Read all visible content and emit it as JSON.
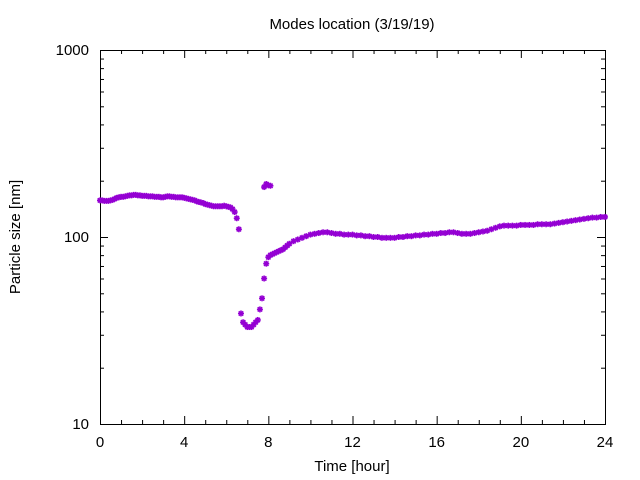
{
  "chart_data": {
    "type": "scatter",
    "title": "Modes location (3/19/19)",
    "xlabel": "Time [hour]",
    "ylabel": "Particle size [nm]",
    "xlim": [
      0,
      24
    ],
    "ylim": [
      10,
      1000
    ],
    "yscale": "log",
    "grid": false,
    "legend": "none",
    "marker_color": "#9400d3",
    "x_ticks": [
      0,
      4,
      8,
      12,
      16,
      20,
      24
    ],
    "x_tick_labels": [
      "0",
      "4",
      "8",
      "12",
      "16",
      "20",
      "24"
    ],
    "y_ticks": [
      10,
      100,
      1000
    ],
    "y_tick_labels": [
      "10",
      "100",
      "1000"
    ],
    "series": [
      {
        "x": [
          0.0,
          0.1,
          0.2,
          0.3,
          0.4,
          0.5,
          0.6,
          0.7,
          0.8,
          0.9,
          1.0,
          1.1,
          1.2,
          1.3,
          1.4,
          1.5,
          1.6,
          1.7,
          1.8,
          1.9,
          2.0,
          2.1,
          2.2,
          2.3,
          2.4,
          2.5,
          2.6,
          2.7,
          2.8,
          2.9,
          3.0,
          3.1,
          3.2,
          3.3,
          3.4,
          3.5,
          3.6,
          3.7,
          3.8,
          3.9,
          4.0,
          4.1,
          4.2,
          4.3,
          4.4,
          4.5,
          4.6,
          4.7,
          4.8,
          4.9,
          5.0,
          5.1,
          5.2,
          5.3,
          5.4,
          5.5,
          5.6,
          5.7,
          5.8,
          5.9,
          6.0,
          6.1,
          6.2,
          6.3,
          6.4,
          6.5,
          6.6,
          6.7,
          6.8,
          6.9,
          7.0,
          7.1,
          7.2,
          7.3,
          7.4,
          7.5,
          7.6,
          7.7,
          7.8,
          7.9,
          8.0,
          8.1,
          8.2,
          8.3,
          8.4,
          8.5,
          8.6,
          8.7,
          8.8,
          8.9,
          9.0,
          9.2,
          9.4,
          9.6,
          9.8,
          10.0,
          10.2,
          10.4,
          10.6,
          10.8,
          11.0,
          11.2,
          11.4,
          11.6,
          11.8,
          12.0,
          12.2,
          12.4,
          12.6,
          12.8,
          13.0,
          13.2,
          13.4,
          13.6,
          13.8,
          14.0,
          14.2,
          14.4,
          14.6,
          14.8,
          15.0,
          15.2,
          15.4,
          15.6,
          15.8,
          16.0,
          16.2,
          16.4,
          16.6,
          16.8,
          17.0,
          17.2,
          17.4,
          17.6,
          17.8,
          18.0,
          18.2,
          18.4,
          18.6,
          18.8,
          19.0,
          19.2,
          19.4,
          19.6,
          19.8,
          20.0,
          20.2,
          20.4,
          20.6,
          20.8,
          21.0,
          21.2,
          21.4,
          21.6,
          21.8,
          22.0,
          22.2,
          22.4,
          22.6,
          22.8,
          23.0,
          23.2,
          23.4,
          23.6,
          23.8,
          24.0,
          7.8,
          7.9,
          8.0,
          8.1
        ],
        "y": [
          157,
          157,
          156,
          156,
          156,
          157,
          158,
          160,
          162,
          163,
          164,
          164,
          165,
          166,
          167,
          167,
          168,
          168,
          167,
          167,
          166,
          166,
          166,
          165,
          165,
          165,
          164,
          164,
          164,
          163,
          163,
          164,
          165,
          165,
          164,
          164,
          163,
          163,
          163,
          163,
          162,
          161,
          160,
          159,
          158,
          157,
          155,
          154,
          153,
          152,
          150,
          149,
          148,
          147,
          146,
          146,
          146,
          146,
          146,
          147,
          146,
          145,
          144,
          141,
          136,
          126,
          110,
          39,
          35,
          34,
          33,
          33,
          33,
          34,
          35,
          36,
          41,
          47,
          60,
          72,
          78,
          80,
          81,
          82,
          83,
          84,
          85,
          86,
          88,
          90,
          92,
          95,
          97,
          99,
          101,
          103,
          104,
          105,
          106,
          106,
          105,
          104,
          104,
          103,
          103,
          103,
          102,
          102,
          101,
          101,
          100,
          100,
          99,
          99,
          99,
          99,
          100,
          100,
          101,
          101,
          102,
          102,
          103,
          103,
          104,
          104,
          105,
          105,
          106,
          106,
          105,
          104,
          104,
          104,
          105,
          106,
          107,
          108,
          110,
          112,
          114,
          115,
          115,
          115,
          115,
          116,
          116,
          116,
          116,
          117,
          117,
          117,
          117,
          118,
          119,
          120,
          121,
          122,
          123,
          124,
          125,
          126,
          127,
          127,
          128,
          128,
          185,
          192,
          189,
          188
        ]
      }
    ]
  }
}
